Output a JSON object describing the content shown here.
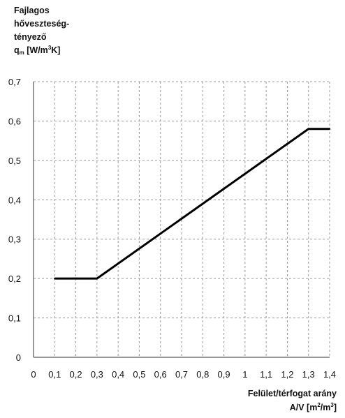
{
  "chart_data": {
    "type": "line",
    "y_title_lines": [
      "Fajlagos",
      "hőveszteség-",
      "tényező"
    ],
    "y_symbol": "q",
    "y_symbol_sub": "m",
    "y_unit_prefix": "[W/m",
    "y_unit_sup": "3",
    "y_unit_suffix": "K]",
    "x_title": "Felület/térfogat arány",
    "x_unit_prefix": "A/V [m",
    "x_unit_sup1": "2",
    "x_unit_mid": "/m",
    "x_unit_sup2": "3",
    "x_unit_suffix": "]",
    "x_ticks": [
      "0",
      "0,1",
      "0,2",
      "0,3",
      "0,4",
      "0,5",
      "0,6",
      "0,7",
      "0,8",
      "0,9",
      "1",
      "1,1",
      "1,2",
      "1,3",
      "1,4"
    ],
    "y_ticks": [
      "0",
      "0,1",
      "0,2",
      "0,3",
      "0,4",
      "0,5",
      "0,6",
      "0,7"
    ],
    "xlim": [
      0,
      1.4
    ],
    "ylim": [
      0,
      0.7
    ],
    "grid": true,
    "series": [
      {
        "color": "#000000",
        "x": [
          0.1,
          0.3,
          1.3,
          1.4
        ],
        "y": [
          0.2,
          0.2,
          0.58,
          0.58
        ]
      }
    ]
  }
}
